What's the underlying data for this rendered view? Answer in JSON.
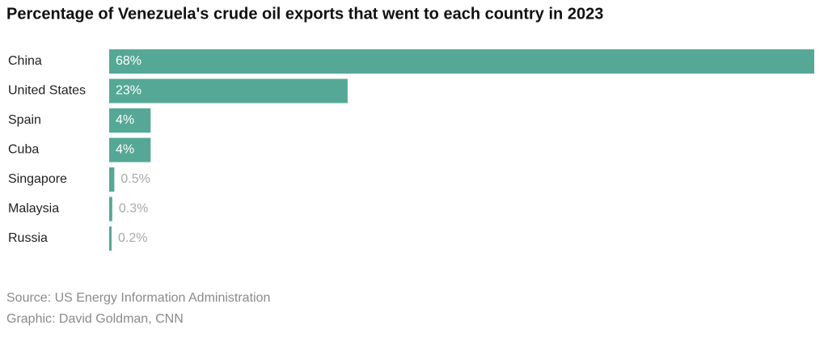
{
  "chart_data": {
    "type": "barh",
    "title": "Percentage of Venezuela's crude oil exports that went to each country in 2023",
    "categories": [
      "China",
      "United States",
      "Spain",
      "Cuba",
      "Singapore",
      "Malaysia",
      "Russia"
    ],
    "values": [
      68,
      23,
      4,
      4,
      0.5,
      0.3,
      0.2
    ],
    "value_labels": [
      "68%",
      "23%",
      "4%",
      "4%",
      "0.5%",
      "0.3%",
      "0.2%"
    ],
    "color": "#56a896",
    "source": "Source: US Energy Information Administration",
    "credit": "Graphic: David Goldman, CNN"
  }
}
